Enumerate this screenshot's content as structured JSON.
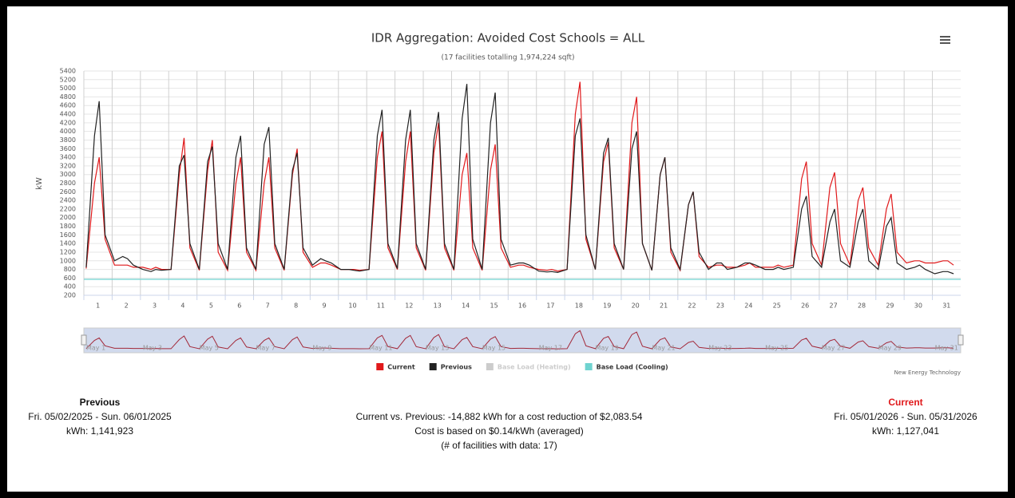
{
  "chart_data": {
    "type": "line",
    "title": "IDR Aggregation: Avoided Cost Schools = ALL",
    "subtitle": "(17 facilities totalling 1,974,224 sqft)",
    "y_label": "kW",
    "credit": "New Energy Technology",
    "xlim": [
      1,
      32
    ],
    "xticks": [
      1,
      2,
      3,
      4,
      5,
      6,
      7,
      8,
      9,
      10,
      11,
      12,
      13,
      14,
      15,
      16,
      17,
      18,
      19,
      20,
      21,
      22,
      23,
      24,
      25,
      26,
      27,
      28,
      29,
      30,
      31
    ],
    "ylim": [
      200,
      5400
    ],
    "yticks": [
      200,
      400,
      600,
      800,
      1000,
      1200,
      1400,
      1600,
      1800,
      2000,
      2200,
      2400,
      2600,
      2800,
      3000,
      3200,
      3400,
      3600,
      3800,
      4000,
      4200,
      4400,
      4600,
      4800,
      5000,
      5200,
      5400
    ],
    "grid": true,
    "x": [
      1.083,
      1.375,
      1.542,
      1.75,
      2.083,
      2.375,
      2.542,
      2.75,
      3.083,
      3.375,
      3.542,
      3.75,
      4.083,
      4.375,
      4.542,
      4.75,
      5.083,
      5.375,
      5.542,
      5.75,
      6.083,
      6.375,
      6.542,
      6.75,
      7.083,
      7.375,
      7.542,
      7.75,
      8.083,
      8.375,
      8.542,
      8.75,
      9.083,
      9.375,
      9.542,
      9.75,
      10.083,
      10.375,
      10.542,
      10.75,
      11.083,
      11.375,
      11.542,
      11.75,
      12.083,
      12.375,
      12.542,
      12.75,
      13.083,
      13.375,
      13.542,
      13.75,
      14.083,
      14.375,
      14.542,
      14.75,
      15.083,
      15.375,
      15.542,
      15.75,
      16.083,
      16.375,
      16.542,
      16.75,
      17.083,
      17.375,
      17.542,
      17.75,
      18.083,
      18.375,
      18.542,
      18.75,
      19.083,
      19.375,
      19.542,
      19.75,
      20.083,
      20.375,
      20.542,
      20.75,
      21.083,
      21.375,
      21.542,
      21.75,
      22.083,
      22.375,
      22.542,
      22.75,
      23.083,
      23.375,
      23.542,
      23.75,
      24.083,
      24.375,
      24.542,
      24.75,
      25.083,
      25.375,
      25.542,
      25.75,
      26.083,
      26.375,
      26.542,
      26.75,
      27.083,
      27.375,
      27.542,
      27.75,
      28.083,
      28.375,
      28.542,
      28.75,
      29.083,
      29.375,
      29.542,
      29.75,
      30.083,
      30.375,
      30.542,
      30.75,
      31.083,
      31.375,
      31.542,
      31.75
    ],
    "series": [
      {
        "name": "Current",
        "color": "#e0191b",
        "values": [
          820,
          2800,
          3400,
          1500,
          900,
          900,
          900,
          850,
          850,
          800,
          850,
          800,
          800,
          3000,
          3850,
          1300,
          780,
          3100,
          3800,
          1200,
          780,
          2800,
          3400,
          1200,
          780,
          2800,
          3400,
          1300,
          780,
          3000,
          3600,
          1200,
          850,
          950,
          950,
          900,
          800,
          800,
          800,
          780,
          800,
          3400,
          4000,
          1300,
          800,
          3300,
          4000,
          1300,
          780,
          3500,
          4200,
          1300,
          780,
          3000,
          3500,
          1300,
          780,
          3100,
          3700,
          1300,
          850,
          900,
          900,
          850,
          800,
          780,
          800,
          760,
          800,
          4400,
          5150,
          1500,
          800,
          3300,
          3750,
          1300,
          800,
          4200,
          4800,
          1400,
          780,
          3000,
          3400,
          1200,
          780,
          2300,
          2600,
          1100,
          850,
          900,
          900,
          850,
          850,
          900,
          950,
          850,
          850,
          850,
          900,
          850,
          900,
          2900,
          3300,
          1400,
          900,
          2700,
          3050,
          1400,
          900,
          2400,
          2700,
          1300,
          900,
          2200,
          2550,
          1200,
          950,
          1000,
          1000,
          950,
          950,
          1000,
          1000,
          900
        ]
      },
      {
        "name": "Previous",
        "color": "#222222",
        "values": [
          850,
          3900,
          4700,
          1600,
          1000,
          1100,
          1050,
          900,
          800,
          750,
          800,
          780,
          800,
          3200,
          3450,
          1400,
          800,
          3300,
          3650,
          1400,
          800,
          3400,
          3900,
          1300,
          800,
          3700,
          4100,
          1400,
          800,
          3100,
          3500,
          1300,
          900,
          1050,
          1000,
          950,
          800,
          800,
          780,
          760,
          800,
          3900,
          4500,
          1400,
          820,
          3800,
          4500,
          1400,
          800,
          3800,
          4450,
          1400,
          800,
          4300,
          5100,
          1500,
          800,
          4200,
          4900,
          1500,
          900,
          950,
          950,
          900,
          760,
          740,
          750,
          730,
          800,
          3900,
          4300,
          1600,
          800,
          3500,
          3850,
          1400,
          800,
          3600,
          4000,
          1400,
          780,
          3000,
          3400,
          1300,
          800,
          2300,
          2600,
          1200,
          800,
          950,
          950,
          800,
          850,
          950,
          950,
          900,
          800,
          800,
          850,
          800,
          850,
          2200,
          2500,
          1100,
          850,
          1900,
          2200,
          1000,
          850,
          1900,
          2200,
          1000,
          800,
          1800,
          2000,
          950,
          800,
          850,
          900,
          800,
          700,
          750,
          750,
          700
        ]
      },
      {
        "name": "Base Load (Heating)",
        "color": "#cccccc",
        "visible": false
      },
      {
        "name": "Base Load (Cooling)",
        "color": "#6fd3d0",
        "x": [
          1,
          32
        ],
        "values": [
          570,
          570
        ]
      }
    ],
    "navigator": {
      "ticks": [
        {
          "value": 1,
          "label": "May 1"
        },
        {
          "value": 3,
          "label": "May 3"
        },
        {
          "value": 5,
          "label": "May 5"
        },
        {
          "value": 7,
          "label": "May 7"
        },
        {
          "value": 9,
          "label": "May 9"
        },
        {
          "value": 11,
          "label": "May 11"
        },
        {
          "value": 13,
          "label": "May 13"
        },
        {
          "value": 15,
          "label": "May 15"
        },
        {
          "value": 17,
          "label": "May 17"
        },
        {
          "value": 19,
          "label": "May 19"
        },
        {
          "value": 21,
          "label": "May 21"
        },
        {
          "value": 23,
          "label": "May 23"
        },
        {
          "value": 25,
          "label": "May 25"
        },
        {
          "value": 27,
          "label": "May 27"
        },
        {
          "value": 29,
          "label": "May 29"
        },
        {
          "value": 31,
          "label": "May 31"
        }
      ]
    }
  },
  "summary": {
    "previous": {
      "heading": "Previous",
      "range": "Fri. 05/02/2025 - Sun. 06/01/2025",
      "kwh": "kWh: 1,141,923"
    },
    "comparison": [
      "Current vs. Previous: -14,882 kWh for a cost reduction of $2,083.54",
      "Cost is based on $0.14/kWh (averaged)",
      "(# of facilities with data: 17)"
    ],
    "current": {
      "heading": "Current",
      "range": "Fri. 05/01/2026 - Sun. 05/31/2026",
      "kwh": "kWh: 1,127,041"
    }
  }
}
